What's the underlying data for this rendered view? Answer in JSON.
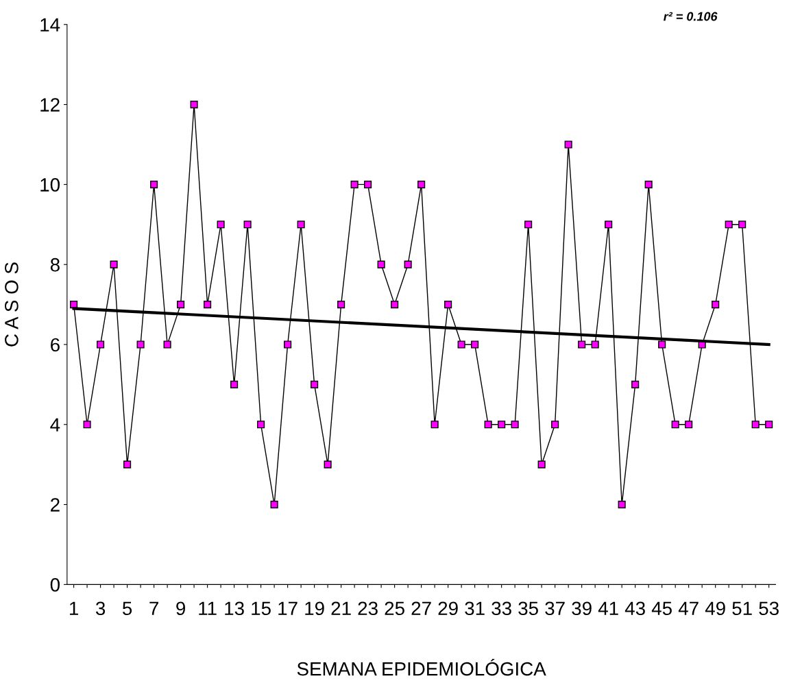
{
  "chart_data": {
    "type": "line",
    "xlabel": "SEMANA EPIDEMIOLÓGICA",
    "ylabel": "C A S O S",
    "xlim": [
      0.5,
      53.5
    ],
    "xticks": [
      1,
      {
        "value": 2,
        "label": null
      },
      3,
      {
        "value": 4,
        "label": null
      },
      5,
      {
        "value": 6,
        "label": null
      },
      7,
      {
        "value": 8,
        "label": null
      },
      9,
      {
        "value": 10,
        "label": null
      },
      11,
      {
        "value": 12,
        "label": null
      },
      13,
      {
        "value": 14,
        "label": null
      },
      15,
      {
        "value": 16,
        "label": null
      },
      17,
      {
        "value": 18,
        "label": null
      },
      19,
      {
        "value": 20,
        "label": null
      },
      21,
      {
        "value": 22,
        "label": null
      },
      23,
      {
        "value": 24,
        "label": null
      },
      25,
      {
        "value": 26,
        "label": null
      },
      27,
      {
        "value": 28,
        "label": null
      },
      29,
      {
        "value": 30,
        "label": null
      },
      31,
      {
        "value": 32,
        "label": null
      },
      33,
      {
        "value": 34,
        "label": null
      },
      35,
      {
        "value": 36,
        "label": null
      },
      37,
      {
        "value": 38,
        "label": null
      },
      39,
      {
        "value": 40,
        "label": null
      },
      41,
      {
        "value": 42,
        "label": null
      },
      43,
      {
        "value": 44,
        "label": null
      },
      45,
      {
        "value": 46,
        "label": null
      },
      47,
      {
        "value": 48,
        "label": null
      },
      49,
      {
        "value": 50,
        "label": null
      },
      51,
      {
        "value": 52,
        "label": null
      },
      53
    ],
    "ylim": [
      0,
      14
    ],
    "yticks": [
      0,
      2,
      4,
      6,
      8,
      10,
      12,
      14
    ],
    "grid": false,
    "legend": false,
    "x": [
      1,
      2,
      3,
      4,
      5,
      6,
      7,
      8,
      9,
      10,
      11,
      12,
      13,
      14,
      15,
      16,
      17,
      18,
      19,
      20,
      21,
      22,
      23,
      24,
      25,
      26,
      27,
      28,
      29,
      30,
      31,
      32,
      33,
      34,
      35,
      36,
      37,
      38,
      39,
      40,
      41,
      42,
      43,
      44,
      45,
      46,
      47,
      48,
      49,
      50,
      51,
      52,
      53
    ],
    "series": [
      {
        "color": "#ff00ff",
        "marker": "square",
        "values": [
          7,
          4,
          6,
          8,
          3,
          6,
          10,
          6,
          7,
          12,
          7,
          9,
          5,
          9,
          4,
          2,
          6,
          9,
          5,
          3,
          7,
          10,
          10,
          8,
          7,
          8,
          10,
          4,
          7,
          6,
          6,
          4,
          4,
          4,
          9,
          3,
          4,
          11,
          6,
          6,
          9,
          2,
          5,
          10,
          6,
          4,
          4,
          6,
          7,
          9,
          9,
          4,
          4
        ]
      },
      {
        "color": "#000000",
        "marker": "none",
        "x": [
          1,
          53
        ],
        "values": [
          6.9,
          6.0
        ]
      }
    ],
    "annotations": [
      "r² = 0.106"
    ]
  }
}
